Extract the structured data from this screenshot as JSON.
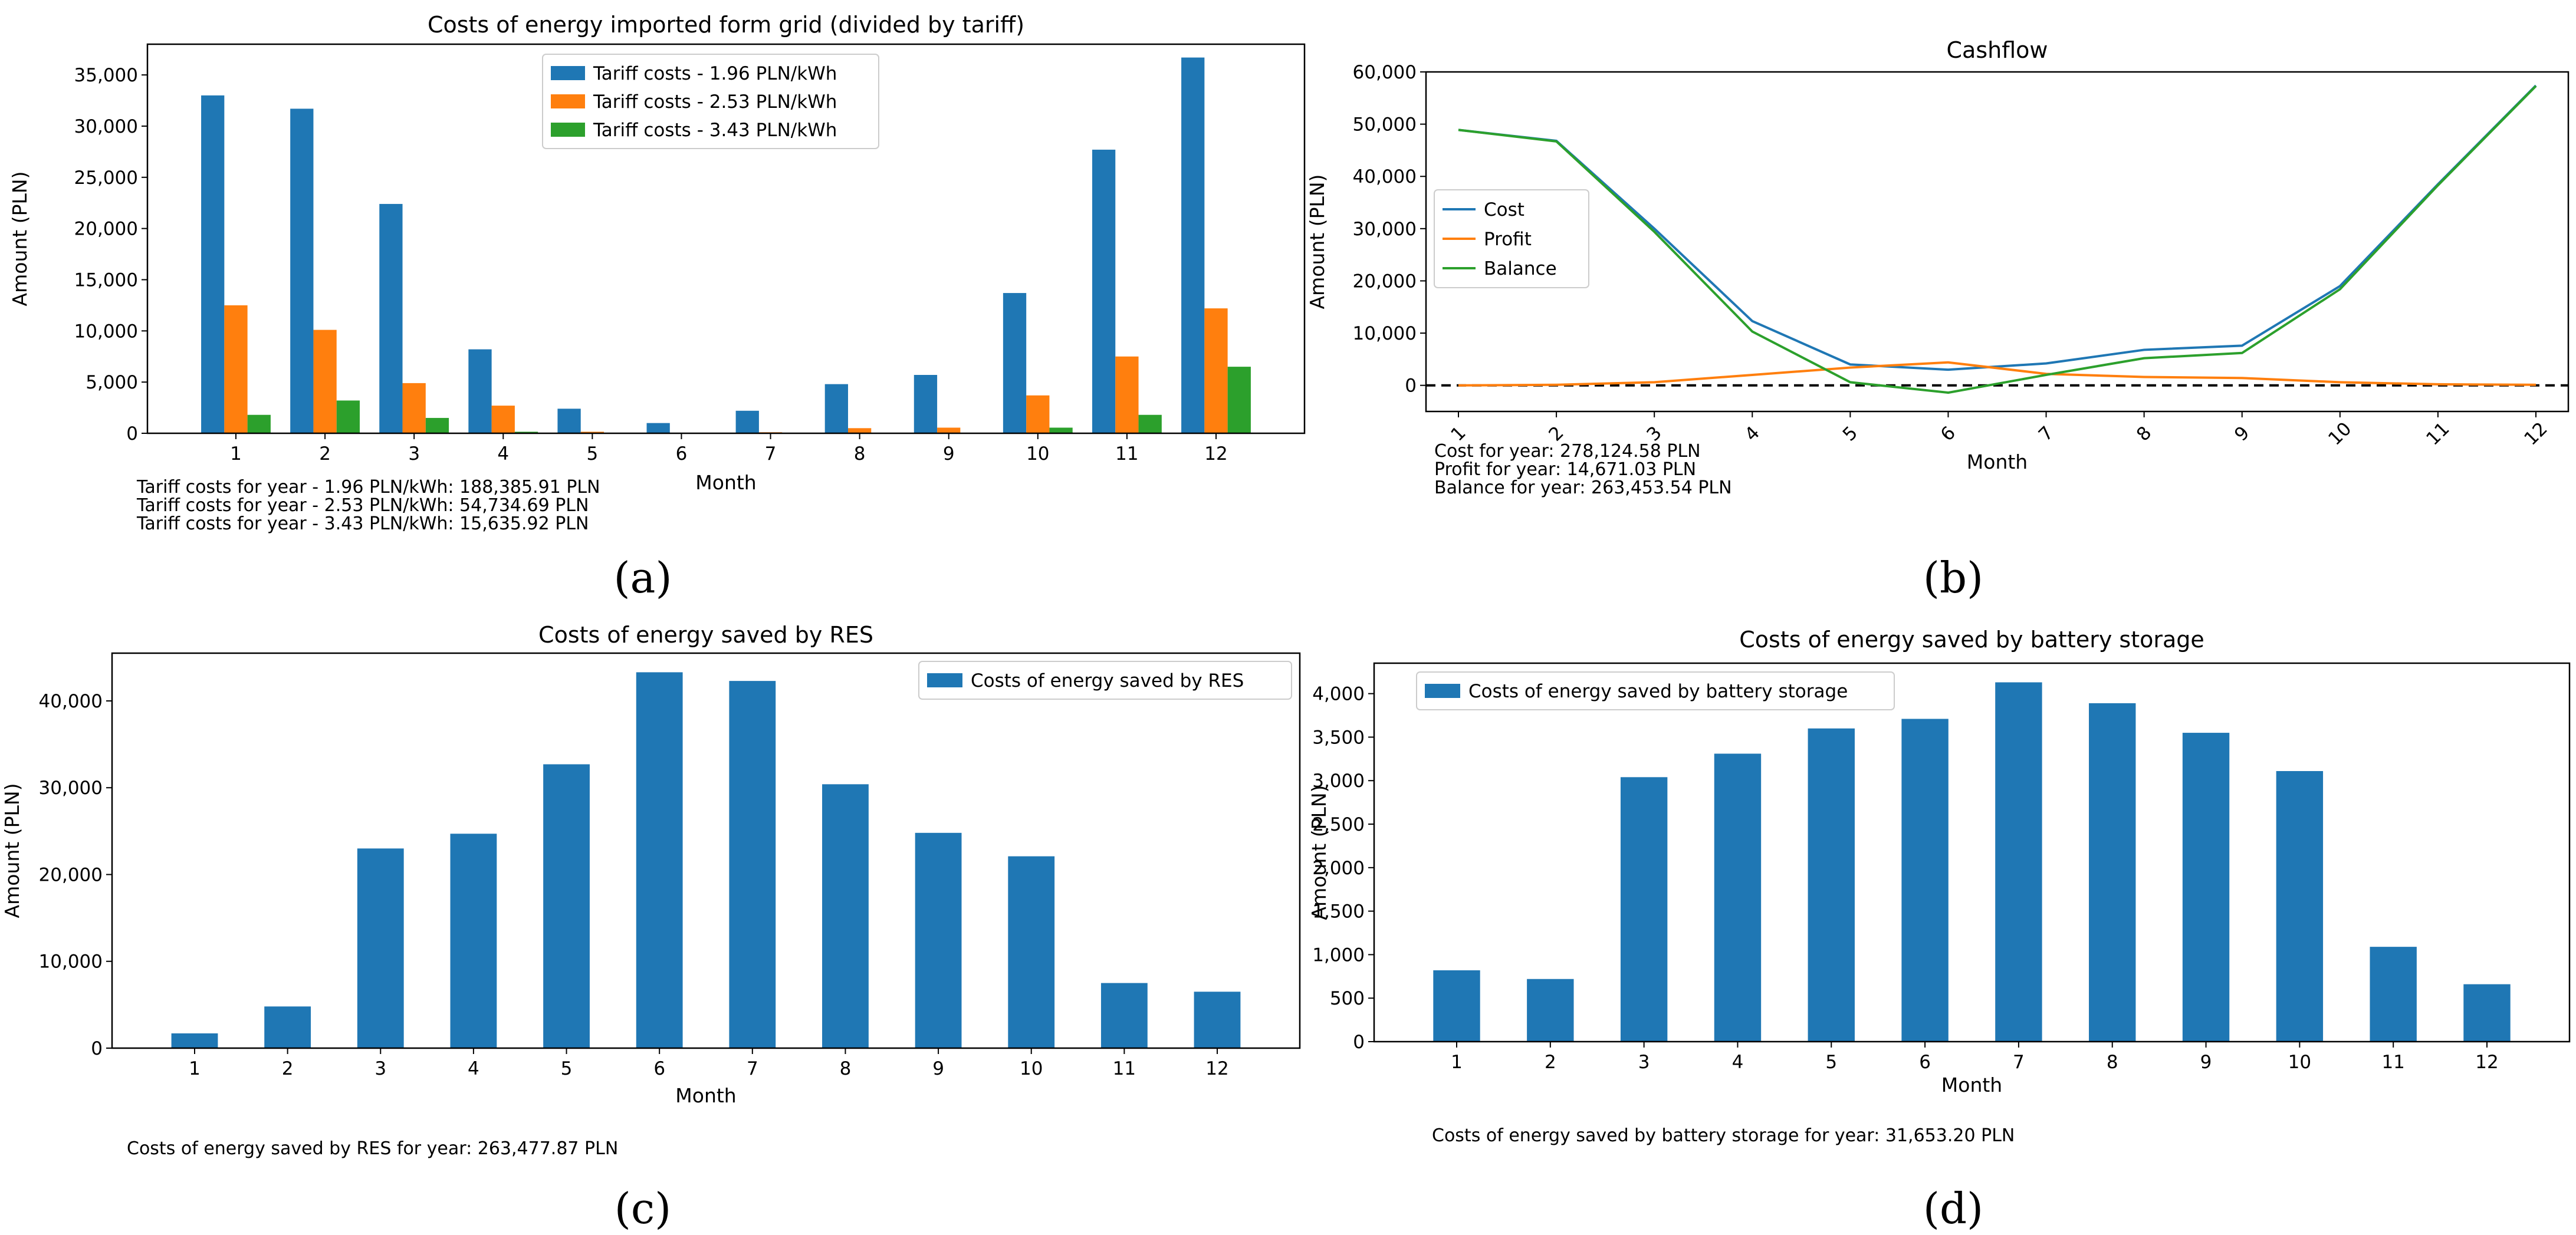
{
  "colors": {
    "blue": "#1f77b4",
    "orange": "#ff7f0e",
    "green": "#2ca02c"
  },
  "chart_data": [
    {
      "id": "a",
      "panel_label": "(a)",
      "type": "bar",
      "title": "Costs of energy imported form grid (divided by tariff)",
      "xlabel": "Month",
      "ylabel": "Amount (PLN)",
      "categories": [
        "1",
        "2",
        "3",
        "4",
        "5",
        "6",
        "7",
        "8",
        "9",
        "10",
        "11",
        "12"
      ],
      "series": [
        {
          "name": "Tariff costs - 1.96 PLN/kWh",
          "color": "#1f77b4",
          "values": [
            33000,
            31700,
            22400,
            8200,
            2400,
            1000,
            2200,
            4800,
            5700,
            13700,
            27700,
            36700
          ]
        },
        {
          "name": "Tariff costs - 2.53 PLN/kWh",
          "color": "#ff7f0e",
          "values": [
            12500,
            10100,
            4900,
            2700,
            150,
            50,
            100,
            500,
            550,
            3700,
            7500,
            12200
          ]
        },
        {
          "name": "Tariff costs - 3.43 PLN/kWh",
          "color": "#2ca02c",
          "values": [
            1800,
            3200,
            1500,
            150,
            50,
            0,
            0,
            0,
            0,
            550,
            1800,
            6500
          ]
        }
      ],
      "ylim": [
        0,
        38000
      ],
      "yticks": [
        0,
        5000,
        10000,
        15000,
        20000,
        25000,
        30000,
        35000
      ],
      "ytick_labels": [
        "0",
        "5,000",
        "10,000",
        "15,000",
        "20,000",
        "25,000",
        "30,000",
        "35,000"
      ],
      "legend_position": "top-center",
      "notes": [
        "Tariff costs for year - 1.96 PLN/kWh: 188,385.91 PLN",
        "Tariff costs for year - 2.53 PLN/kWh: 54,734.69 PLN",
        "Tariff costs for year - 3.43 PLN/kWh: 15,635.92 PLN"
      ]
    },
    {
      "id": "b",
      "panel_label": "(b)",
      "type": "line",
      "title": "Cashflow",
      "xlabel": "Month",
      "ylabel": "Amount (PLN)",
      "categories": [
        "1",
        "2",
        "3",
        "4",
        "5",
        "6",
        "7",
        "8",
        "9",
        "10",
        "11",
        "12"
      ],
      "series": [
        {
          "name": "Cost",
          "color": "#1f77b4",
          "values": [
            48900,
            46800,
            30000,
            12300,
            4000,
            3000,
            4200,
            6800,
            7600,
            19000,
            38500,
            57400
          ]
        },
        {
          "name": "Profit",
          "color": "#ff7f0e",
          "values": [
            0,
            100,
            600,
            2000,
            3400,
            4400,
            2200,
            1600,
            1400,
            600,
            200,
            100
          ]
        },
        {
          "name": "Balance",
          "color": "#2ca02c",
          "values": [
            48900,
            46700,
            29400,
            10300,
            600,
            -1400,
            2000,
            5200,
            6200,
            18400,
            38300,
            57300
          ]
        }
      ],
      "zero_line": "dashed",
      "ylim": [
        -5000,
        60000
      ],
      "yticks": [
        0,
        10000,
        20000,
        30000,
        40000,
        50000,
        60000
      ],
      "ytick_labels": [
        "0",
        "10,000",
        "20,000",
        "30,000",
        "40,000",
        "50,000",
        "60,000"
      ],
      "legend_position": "center-left",
      "notes": [
        "Cost for year: 278,124.58 PLN",
        "Profit for year: 14,671.03 PLN",
        "Balance for year: 263,453.54 PLN"
      ]
    },
    {
      "id": "c",
      "panel_label": "(c)",
      "type": "bar",
      "title": "Costs of energy saved by RES",
      "xlabel": "Month",
      "ylabel": "Amount (PLN)",
      "categories": [
        "1",
        "2",
        "3",
        "4",
        "5",
        "6",
        "7",
        "8",
        "9",
        "10",
        "11",
        "12"
      ],
      "series": [
        {
          "name": "Costs of energy saved by RES",
          "color": "#1f77b4",
          "values": [
            1700,
            4800,
            23000,
            24700,
            32700,
            43300,
            42300,
            30400,
            24800,
            22100,
            7500,
            6500
          ]
        }
      ],
      "ylim": [
        0,
        45500
      ],
      "yticks": [
        0,
        10000,
        20000,
        30000,
        40000
      ],
      "ytick_labels": [
        "0",
        "10,000",
        "20,000",
        "30,000",
        "40,000"
      ],
      "legend_position": "top-right",
      "notes": [
        "Costs of energy saved by RES for year: 263,477.87 PLN"
      ]
    },
    {
      "id": "d",
      "panel_label": "(d)",
      "type": "bar",
      "title": "Costs of energy saved by battery storage",
      "xlabel": "Month",
      "ylabel": "Amount (PLN)",
      "categories": [
        "1",
        "2",
        "3",
        "4",
        "5",
        "6",
        "7",
        "8",
        "9",
        "10",
        "11",
        "12"
      ],
      "series": [
        {
          "name": "Costs of energy saved by battery storage",
          "color": "#1f77b4",
          "values": [
            820,
            720,
            3040,
            3310,
            3600,
            3710,
            4130,
            3890,
            3550,
            3110,
            1090,
            660
          ]
        }
      ],
      "ylim": [
        0,
        4350
      ],
      "yticks": [
        0,
        500,
        1000,
        1500,
        2000,
        2500,
        3000,
        3500,
        4000
      ],
      "ytick_labels": [
        "0",
        "500",
        "1,000",
        "1,500",
        "2,000",
        "2,500",
        "3,000",
        "3,500",
        "4,000"
      ],
      "legend_position": "top-left",
      "notes": [
        "Costs of energy saved by battery storage for year: 31,653.20 PLN"
      ]
    }
  ]
}
